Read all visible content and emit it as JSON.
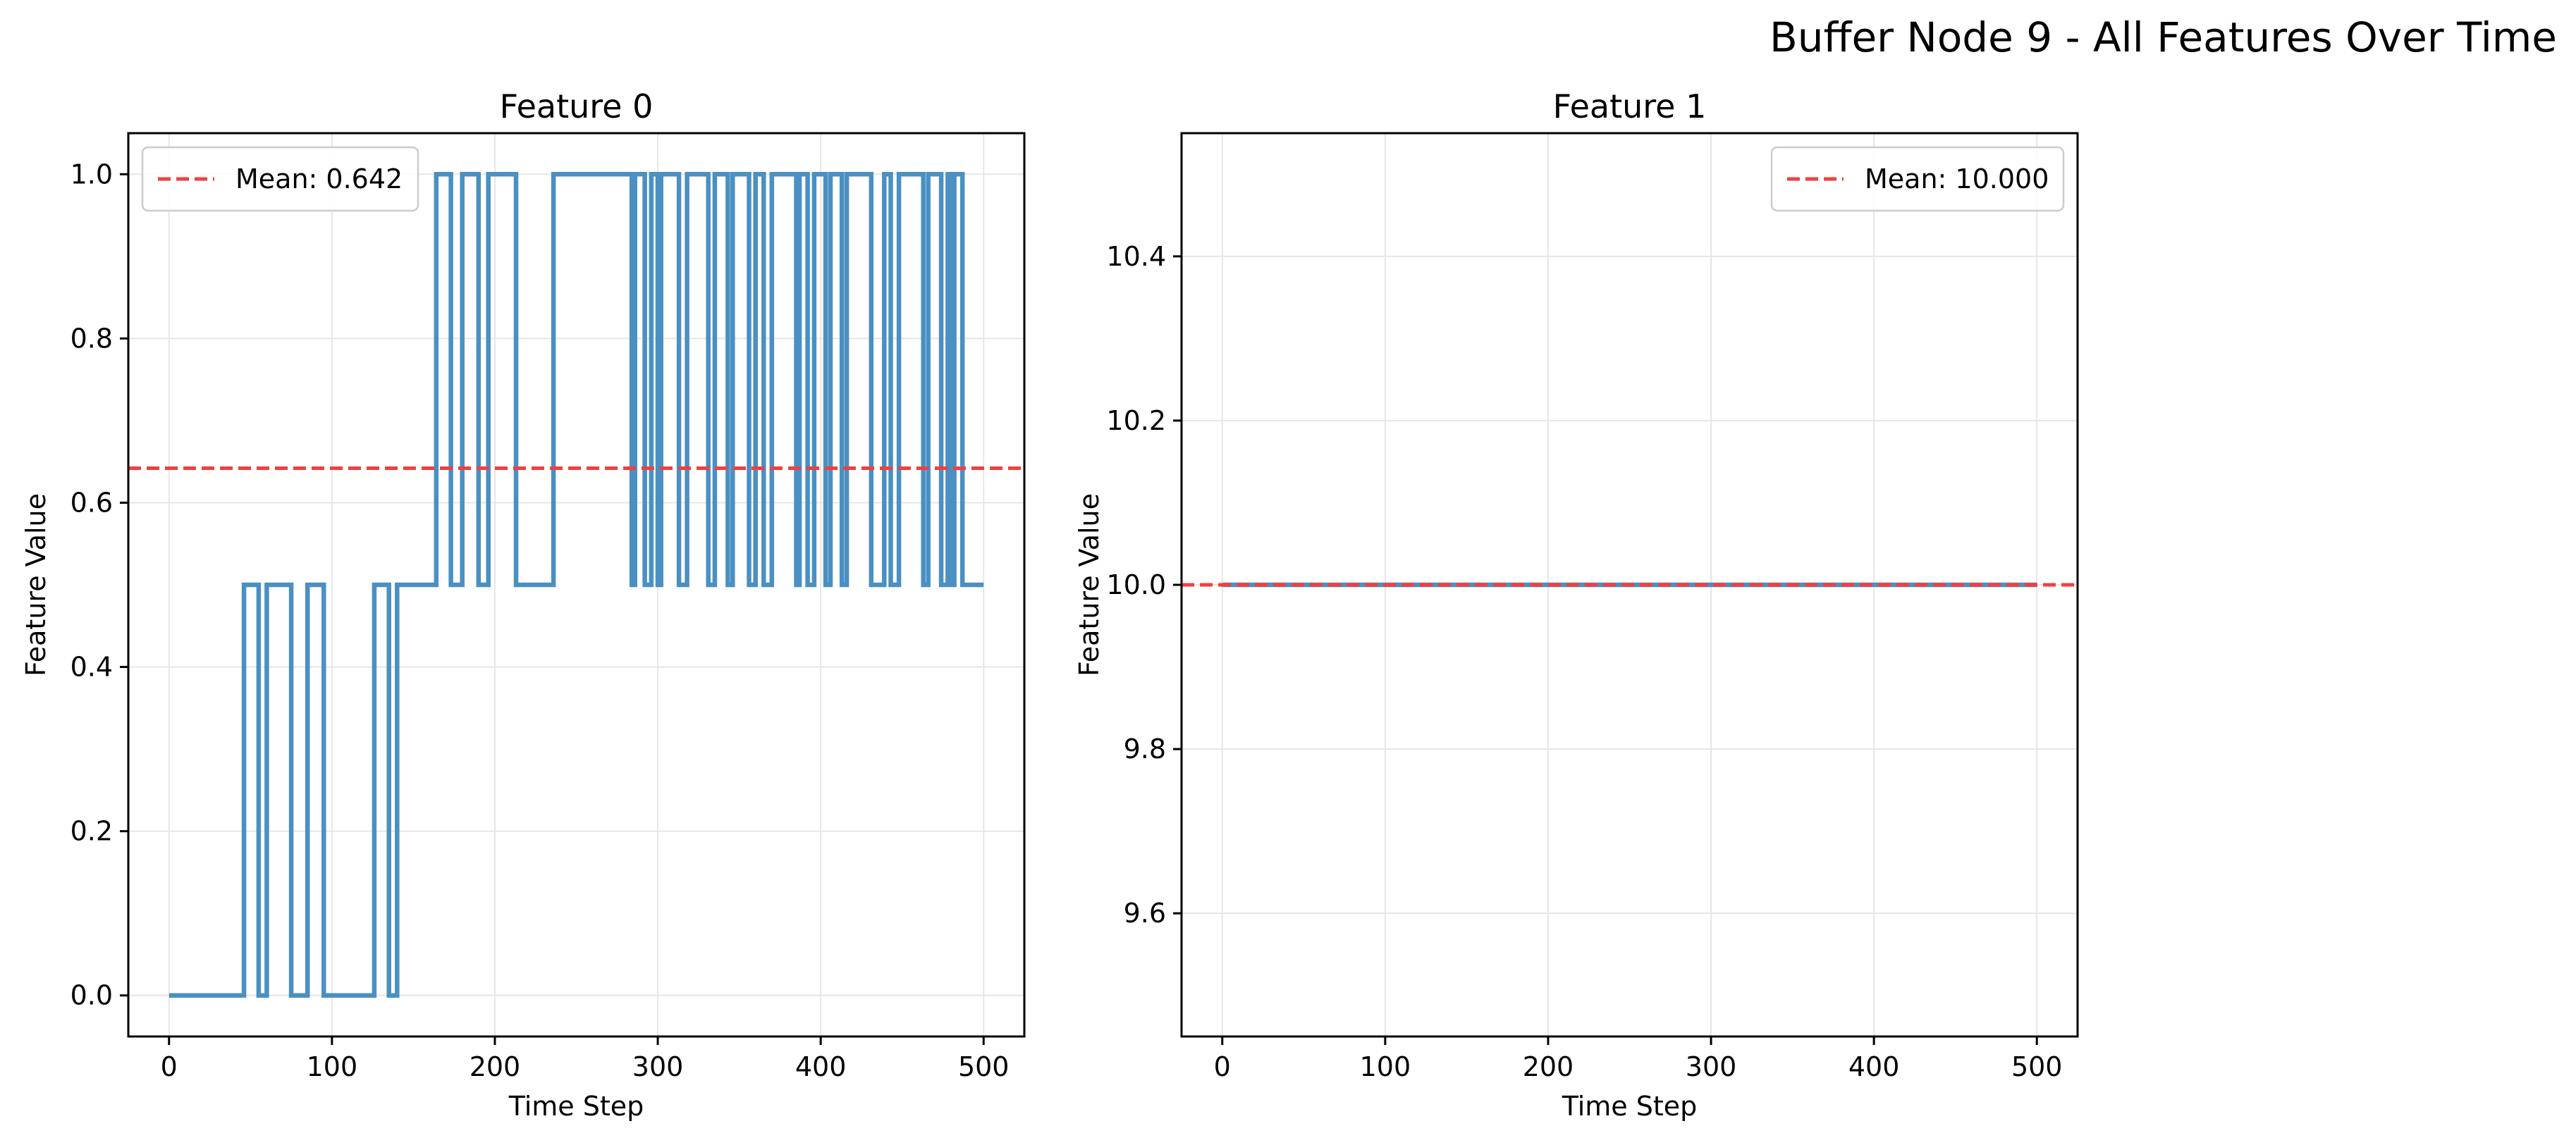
{
  "figure": {
    "suptitle": "Buffer Node 9 - All Features Over Time"
  },
  "colors": {
    "series": "#4a90c2",
    "mean_line": "#f04040",
    "grid": "#e6e6e6",
    "axes": "#000000"
  },
  "chart_data": [
    {
      "type": "line",
      "title": "Feature 0",
      "xlabel": "Time Step",
      "ylabel": "Feature Value",
      "xlim": [
        -25,
        525
      ],
      "ylim": [
        -0.05,
        1.05
      ],
      "xticks": [
        0,
        100,
        200,
        300,
        400,
        500
      ],
      "xtick_labels": [
        "0",
        "100",
        "200",
        "300",
        "400",
        "500"
      ],
      "yticks": [
        0.0,
        0.2,
        0.4,
        0.6,
        0.8,
        1.0
      ],
      "ytick_labels": [
        "0.0",
        "0.2",
        "0.4",
        "0.6",
        "0.8",
        "1.0"
      ],
      "grid": true,
      "legend": {
        "location": "upper-left",
        "entries": [
          "Mean: 0.642"
        ]
      },
      "mean": 0.642,
      "series": [
        {
          "step_values": [
            [
              0,
              0.0
            ],
            [
              46,
              0.5
            ],
            [
              55,
              0.0
            ],
            [
              60,
              0.5
            ],
            [
              75,
              0.0
            ],
            [
              85,
              0.5
            ],
            [
              95,
              0.0
            ],
            [
              126,
              0.5
            ],
            [
              135,
              0.0
            ],
            [
              140,
              0.5
            ],
            [
              164,
              1.0
            ],
            [
              173,
              0.5
            ],
            [
              180,
              1.0
            ],
            [
              190,
              0.5
            ],
            [
              196,
              1.0
            ],
            [
              213,
              0.5
            ],
            [
              236,
              1.0
            ],
            [
              284,
              0.5
            ],
            [
              286,
              1.0
            ],
            [
              292,
              0.5
            ],
            [
              296,
              1.0
            ],
            [
              300,
              0.5
            ],
            [
              302,
              1.0
            ],
            [
              313,
              0.5
            ],
            [
              318,
              1.0
            ],
            [
              331,
              0.5
            ],
            [
              335,
              1.0
            ],
            [
              343,
              0.5
            ],
            [
              346,
              1.0
            ],
            [
              356,
              0.5
            ],
            [
              360,
              1.0
            ],
            [
              365,
              0.5
            ],
            [
              370,
              1.0
            ],
            [
              385,
              0.5
            ],
            [
              387,
              1.0
            ],
            [
              392,
              0.5
            ],
            [
              396,
              1.0
            ],
            [
              403,
              0.5
            ],
            [
              406,
              1.0
            ],
            [
              413,
              0.5
            ],
            [
              416,
              1.0
            ],
            [
              431,
              0.5
            ],
            [
              439,
              1.0
            ],
            [
              443,
              0.5
            ],
            [
              448,
              1.0
            ],
            [
              463,
              0.5
            ],
            [
              466,
              1.0
            ],
            [
              474,
              0.5
            ],
            [
              478,
              1.0
            ],
            [
              480,
              0.5
            ],
            [
              482,
              1.0
            ],
            [
              487,
              0.5
            ],
            [
              493,
              0.5
            ],
            [
              500,
              0.5
            ]
          ]
        }
      ]
    },
    {
      "type": "line",
      "title": "Feature 1",
      "xlabel": "Time Step",
      "ylabel": "Feature Value",
      "xlim": [
        -25,
        525
      ],
      "ylim": [
        9.45,
        10.55
      ],
      "xticks": [
        0,
        100,
        200,
        300,
        400,
        500
      ],
      "xtick_labels": [
        "0",
        "100",
        "200",
        "300",
        "400",
        "500"
      ],
      "yticks": [
        9.6,
        9.8,
        10.0,
        10.2,
        10.4
      ],
      "ytick_labels": [
        "9.6",
        "9.8",
        "10.0",
        "10.2",
        "10.4"
      ],
      "grid": true,
      "legend": {
        "location": "upper-right",
        "entries": [
          "Mean: 10.000"
        ]
      },
      "mean": 10.0,
      "series": [
        {
          "step_values": [
            [
              0,
              10.0
            ],
            [
              500,
              10.0
            ]
          ]
        }
      ]
    }
  ]
}
